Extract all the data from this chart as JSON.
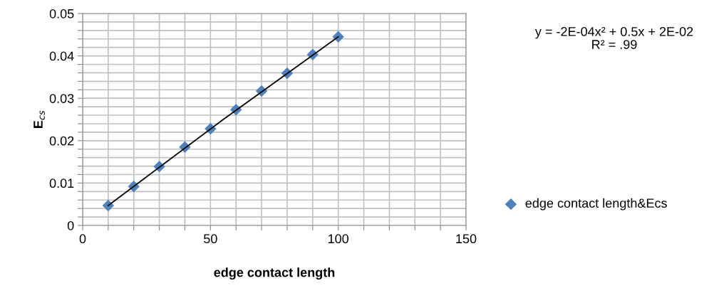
{
  "chart_data": {
    "type": "scatter",
    "xlabel": "edge contact length",
    "ylabel": "E$_{cs}$",
    "x": [
      10,
      20,
      30,
      40,
      50,
      60,
      70,
      80,
      90,
      100
    ],
    "series": [
      {
        "name": "edge contact length&Ecs",
        "color": "#4f81bd",
        "marker": "diamond",
        "values": [
          0.0047,
          0.0092,
          0.0139,
          0.0185,
          0.0228,
          0.0273,
          0.0317,
          0.0359,
          0.0403,
          0.0445
        ]
      },
      {
        "type": "line",
        "color": "#000000",
        "x": [
          10,
          55,
          100
        ],
        "values": [
          0.0047,
          0.025,
          0.0445
        ]
      }
    ],
    "annotations": [
      "y = -2E-04x² + 0.5x + 2E-02\nR² = .99"
    ],
    "xlim": [
      0,
      150
    ],
    "ylim": [
      0,
      0.05
    ],
    "xticks": [
      0,
      {
        "value": 10,
        "label": null
      },
      {
        "value": 20,
        "label": null
      },
      {
        "value": 30,
        "label": null
      },
      {
        "value": 40,
        "label": null
      },
      50,
      {
        "value": 60,
        "label": null
      },
      {
        "value": 70,
        "label": null
      },
      {
        "value": 80,
        "label": null
      },
      {
        "value": 90,
        "label": null
      },
      100,
      {
        "value": 110,
        "label": null
      },
      {
        "value": 120,
        "label": null
      },
      {
        "value": 130,
        "label": null
      },
      {
        "value": 140,
        "label": null
      },
      150
    ],
    "yticks": [
      0,
      {
        "value": 0.002,
        "label": null
      },
      {
        "value": 0.004,
        "label": null
      },
      {
        "value": 0.006,
        "label": null
      },
      {
        "value": 0.008,
        "label": null
      },
      0.01,
      {
        "value": 0.012,
        "label": null
      },
      {
        "value": 0.014,
        "label": null
      },
      {
        "value": 0.016,
        "label": null
      },
      {
        "value": 0.018,
        "label": null
      },
      0.02,
      {
        "value": 0.022,
        "label": null
      },
      {
        "value": 0.024,
        "label": null
      },
      {
        "value": 0.026,
        "label": null
      },
      {
        "value": 0.028,
        "label": null
      },
      0.03,
      {
        "value": 0.032,
        "label": null
      },
      {
        "value": 0.034,
        "label": null
      },
      {
        "value": 0.036,
        "label": null
      },
      {
        "value": 0.038,
        "label": null
      },
      0.04,
      {
        "value": 0.042,
        "label": null
      },
      {
        "value": 0.044,
        "label": null
      },
      {
        "value": 0.046,
        "label": null
      },
      {
        "value": 0.048,
        "label": null
      },
      0.05
    ],
    "grid": true,
    "legend": "right"
  }
}
